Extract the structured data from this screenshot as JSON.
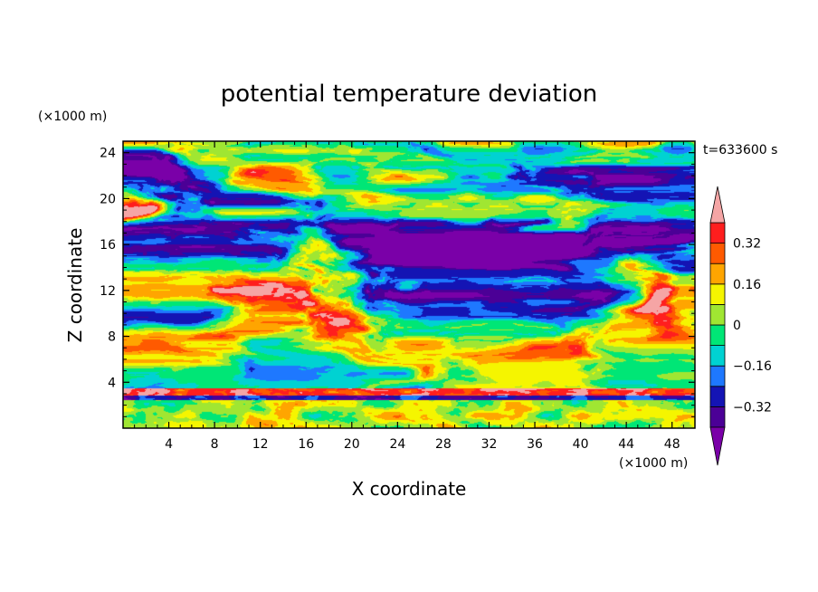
{
  "chart_data": {
    "type": "heatmap",
    "title": "potential temperature deviation",
    "xlabel": "X coordinate",
    "ylabel": "Z coordinate",
    "x_unit": "(×1000 m)",
    "z_unit": "(×1000 m)",
    "time_label": "t=633600 s",
    "xlim": [
      0,
      50
    ],
    "ylim": [
      0,
      25
    ],
    "x_ticks": [
      4,
      8,
      12,
      16,
      20,
      24,
      28,
      32,
      36,
      40,
      44,
      48
    ],
    "y_ticks": [
      4,
      8,
      12,
      16,
      20,
      24
    ],
    "colorbar": {
      "levels": [
        -0.4,
        -0.32,
        -0.24,
        -0.16,
        -0.08,
        0,
        0.08,
        0.16,
        0.24,
        0.32,
        0.4
      ],
      "tick_labels": [
        "0.32",
        "0.16",
        "0",
        "−0.16",
        "−0.32"
      ],
      "tick_values": [
        0.32,
        0.16,
        0,
        -0.16,
        -0.32
      ],
      "colors": [
        "#7a00a8",
        "#4b0096",
        "#1414b4",
        "#1e78ff",
        "#00d2d2",
        "#00e676",
        "#a0e632",
        "#f5f500",
        "#ffa500",
        "#ff5a00",
        "#ff1e1e",
        "#f5a5a5"
      ],
      "extend": "both"
    },
    "grid": false
  }
}
